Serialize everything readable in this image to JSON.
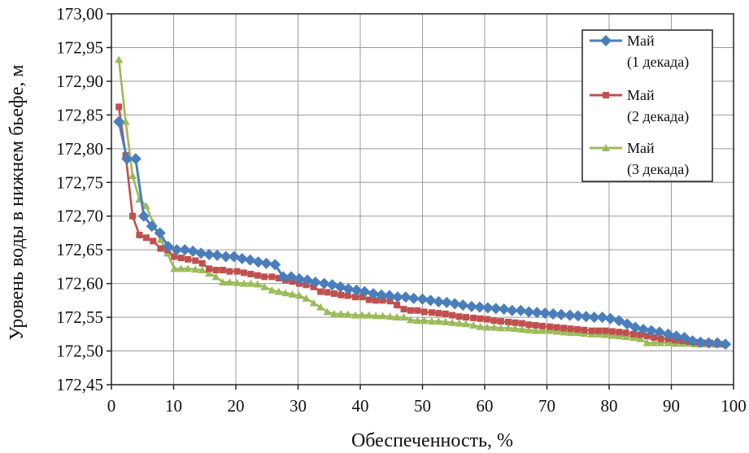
{
  "chart_data": {
    "type": "line",
    "xlabel": "Обеспеченность, %",
    "ylabel": "Уровень воды в нижнем бьефе, м",
    "xlim": [
      0,
      100
    ],
    "ylim": [
      172.45,
      173.0
    ],
    "x_ticks": [
      "0",
      "10",
      "20",
      "30",
      "40",
      "50",
      "60",
      "70",
      "80",
      "90",
      "100"
    ],
    "y_ticks": [
      "172,45",
      "172,50",
      "172,55",
      "172,60",
      "172,65",
      "172,70",
      "172,75",
      "172,80",
      "172,85",
      "172,90",
      "172,95",
      "173,00"
    ],
    "grid": true,
    "legend_position": "top-right",
    "series": [
      {
        "name_line1": "Май",
        "name_line2": "(1 декада)",
        "color": "#4a7ebb",
        "marker": "diamond",
        "x": [
          1.2,
          2.5,
          3.9,
          5.2,
          6.5,
          7.8,
          9.1,
          10.5,
          11.8,
          13.1,
          14.4,
          15.7,
          17.0,
          18.4,
          19.7,
          21.0,
          22.3,
          23.6,
          24.9,
          26.3,
          27.6,
          28.9,
          30.2,
          31.5,
          32.8,
          34.2,
          35.5,
          36.8,
          38.1,
          39.4,
          40.7,
          42.1,
          43.4,
          44.7,
          46.0,
          47.3,
          48.6,
          50.0,
          51.3,
          52.6,
          53.9,
          55.2,
          56.5,
          57.9,
          59.2,
          60.5,
          61.8,
          63.1,
          64.4,
          65.8,
          67.1,
          68.4,
          69.7,
          71.0,
          72.3,
          73.7,
          75.0,
          76.3,
          77.6,
          78.9,
          80.2,
          81.6,
          82.9,
          84.2,
          85.5,
          86.8,
          88.1,
          89.5,
          90.8,
          92.1,
          93.4,
          94.7,
          96.0,
          97.4,
          98.7
        ],
        "y": [
          172.84,
          172.785,
          172.785,
          172.7,
          172.685,
          172.675,
          172.655,
          172.65,
          172.65,
          172.648,
          172.645,
          172.643,
          172.642,
          172.64,
          172.64,
          172.637,
          172.635,
          172.632,
          172.63,
          172.628,
          172.61,
          172.61,
          172.607,
          172.605,
          172.602,
          172.6,
          172.598,
          172.595,
          172.592,
          172.59,
          172.588,
          172.585,
          172.583,
          172.582,
          172.58,
          172.58,
          172.578,
          172.577,
          172.575,
          172.573,
          172.572,
          172.57,
          172.568,
          172.566,
          172.565,
          172.564,
          172.563,
          172.562,
          172.56,
          172.56,
          172.558,
          172.557,
          172.556,
          172.555,
          172.554,
          172.553,
          172.552,
          172.551,
          172.55,
          172.55,
          172.548,
          172.545,
          172.54,
          172.535,
          172.532,
          172.53,
          172.528,
          172.525,
          172.522,
          172.52,
          172.515,
          172.513,
          172.512,
          172.512,
          172.51
        ]
      },
      {
        "name_line1": "Май",
        "name_line2": "(2 декада)",
        "color": "#c0504d",
        "marker": "square",
        "x": [
          1.2,
          2.3,
          3.4,
          4.5,
          5.6,
          6.7,
          7.9,
          9.0,
          10.1,
          11.2,
          12.3,
          13.5,
          14.6,
          15.7,
          16.8,
          17.9,
          19.0,
          20.2,
          21.3,
          22.4,
          23.5,
          24.6,
          25.8,
          26.9,
          28.0,
          29.1,
          30.2,
          31.3,
          32.5,
          33.6,
          34.7,
          35.8,
          36.9,
          38.0,
          39.2,
          40.3,
          41.4,
          42.5,
          43.6,
          44.8,
          45.9,
          47.0,
          48.1,
          49.2,
          50.3,
          51.5,
          52.6,
          53.7,
          54.8,
          55.9,
          57.0,
          58.2,
          59.3,
          60.4,
          61.5,
          62.6,
          63.8,
          64.9,
          66.0,
          67.1,
          68.2,
          69.3,
          70.5,
          71.6,
          72.7,
          73.8,
          74.9,
          76.0,
          77.2,
          78.3,
          79.4,
          80.5,
          81.6,
          82.7,
          83.9,
          85.0,
          86.1,
          87.2,
          88.3,
          89.5,
          90.6,
          91.7,
          92.8,
          93.9,
          95.0,
          96.2,
          97.3,
          98.4
        ],
        "y": [
          172.862,
          172.79,
          172.7,
          172.672,
          172.668,
          172.663,
          172.652,
          172.65,
          172.64,
          172.638,
          172.636,
          172.634,
          172.63,
          172.622,
          172.62,
          172.62,
          172.618,
          172.618,
          172.616,
          172.614,
          172.612,
          172.61,
          172.61,
          172.608,
          172.605,
          172.603,
          172.6,
          172.598,
          172.595,
          172.588,
          172.587,
          172.585,
          172.583,
          172.582,
          172.58,
          172.58,
          172.576,
          172.575,
          172.575,
          172.574,
          172.568,
          172.562,
          172.56,
          172.56,
          172.558,
          172.557,
          172.556,
          172.555,
          172.553,
          172.551,
          172.55,
          172.549,
          172.548,
          172.547,
          172.545,
          172.544,
          172.543,
          172.542,
          172.541,
          172.539,
          172.538,
          172.537,
          172.536,
          172.535,
          172.534,
          172.533,
          172.532,
          172.531,
          172.53,
          172.53,
          172.53,
          172.529,
          172.528,
          172.527,
          172.525,
          172.524,
          172.522,
          172.52,
          172.518,
          172.518,
          172.516,
          172.515,
          172.514,
          172.513,
          172.512,
          172.512,
          172.51,
          172.51
        ]
      },
      {
        "name_line1": "Май",
        "name_line2": "(3 декада)",
        "color": "#9bbb59",
        "marker": "triangle",
        "x": [
          1.2,
          2.3,
          3.4,
          4.5,
          5.6,
          6.7,
          7.9,
          9.0,
          10.1,
          11.2,
          12.3,
          13.5,
          14.6,
          15.7,
          16.8,
          17.9,
          19.0,
          20.2,
          21.3,
          22.4,
          23.5,
          24.6,
          25.8,
          26.9,
          28.0,
          29.1,
          30.2,
          31.3,
          32.5,
          33.6,
          34.7,
          35.8,
          36.9,
          38.0,
          39.2,
          40.3,
          41.4,
          42.5,
          43.6,
          44.8,
          45.9,
          47.0,
          48.1,
          49.2,
          50.3,
          51.5,
          52.6,
          53.7,
          54.8,
          55.9,
          57.0,
          58.2,
          59.3,
          60.4,
          61.5,
          62.6,
          63.8,
          64.9,
          66.0,
          67.1,
          68.2,
          69.3,
          70.5,
          71.6,
          72.7,
          73.8,
          74.9,
          76.0,
          77.2,
          78.3,
          79.4,
          80.5,
          81.6,
          82.7,
          83.9,
          85.0,
          86.1,
          87.2,
          88.3,
          89.5,
          90.6,
          91.7,
          92.8,
          93.9,
          95.0,
          96.2,
          97.3,
          98.4
        ],
        "y": [
          172.932,
          172.84,
          172.76,
          172.725,
          172.715,
          172.69,
          172.665,
          172.645,
          172.622,
          172.622,
          172.622,
          172.621,
          172.62,
          172.615,
          172.61,
          172.602,
          172.602,
          172.601,
          172.6,
          172.6,
          172.599,
          172.595,
          172.59,
          172.588,
          172.586,
          172.584,
          172.582,
          172.578,
          172.571,
          172.565,
          172.558,
          172.555,
          172.555,
          172.554,
          172.553,
          172.553,
          172.553,
          172.552,
          172.552,
          172.551,
          172.55,
          172.55,
          172.546,
          172.545,
          172.545,
          172.544,
          172.544,
          172.543,
          172.542,
          172.541,
          172.54,
          172.538,
          172.536,
          172.535,
          172.535,
          172.534,
          172.534,
          172.533,
          172.532,
          172.531,
          172.53,
          172.53,
          172.53,
          172.529,
          172.528,
          172.527,
          172.527,
          172.526,
          172.525,
          172.525,
          172.524,
          172.523,
          172.522,
          172.521,
          172.52,
          172.518,
          172.512,
          172.512,
          172.512,
          172.512,
          172.511,
          172.511,
          172.511,
          172.51,
          172.51,
          172.51,
          172.51,
          172.51
        ]
      }
    ]
  }
}
